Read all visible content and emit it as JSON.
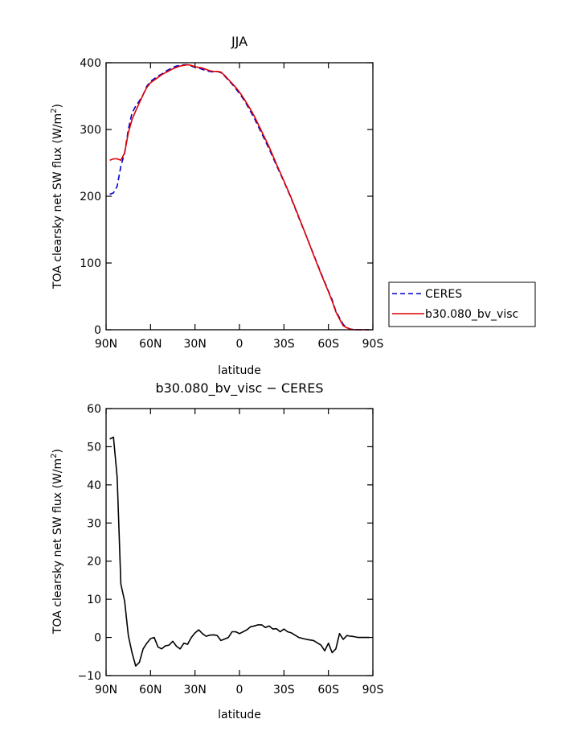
{
  "chart_data": [
    {
      "type": "line",
      "title": "JJA",
      "xlabel": "latitude",
      "ylabel": "TOA clearsky net SW flux (W/m²)",
      "ylabel_main": "TOA clearsky net SW flux (W/m",
      "ylabel_sup": "2",
      "ylabel_close": ")",
      "xlim": [
        -90,
        90
      ],
      "ylim": [
        0,
        400
      ],
      "x_ticks": [
        -90,
        -60,
        -30,
        0,
        30,
        60,
        90
      ],
      "x_tick_labels": [
        "90N",
        "60N",
        "30N",
        "0",
        "30S",
        "60S",
        "90S"
      ],
      "y_ticks": [
        0,
        100,
        200,
        300,
        400
      ],
      "y_tick_labels": [
        "0",
        "100",
        "200",
        "300",
        "400"
      ],
      "legend": {
        "placement": "right",
        "entries": [
          "CERES",
          "b30.080_bv_visc"
        ]
      },
      "series": [
        {
          "name": "CERES",
          "color": "#0000cc",
          "dash": "dashed",
          "x": [
            -87.5,
            -85,
            -82.5,
            -80,
            -77.5,
            -75,
            -72.5,
            -70,
            -67.5,
            -65,
            -62.5,
            -60,
            -57.5,
            -55,
            -52.5,
            -50,
            -47.5,
            -45,
            -42.5,
            -40,
            -37.5,
            -35,
            -32.5,
            -30,
            -27.5,
            -25,
            -22.5,
            -20,
            -17.5,
            -15,
            -12.5,
            -10,
            -7.5,
            -5,
            -2.5,
            0,
            2.5,
            5,
            7.5,
            10,
            15,
            20,
            25,
            30,
            35,
            40,
            45,
            50,
            55,
            60,
            62.5,
            65,
            67.5,
            70,
            72.5,
            75,
            77.5,
            80,
            82.5,
            85,
            87.5
          ],
          "y": [
            203,
            205,
            215,
            245,
            265,
            300,
            325,
            335,
            343,
            352,
            365,
            372,
            376,
            380,
            383,
            387,
            390,
            393,
            395,
            396,
            397,
            397,
            395,
            393,
            392,
            390,
            388,
            387,
            386,
            387,
            385,
            380,
            374,
            368,
            361,
            354,
            346,
            337,
            327,
            317,
            294,
            271,
            246,
            222,
            196,
            168,
            141,
            113,
            85,
            58,
            45,
            28,
            18,
            8,
            3,
            1,
            0,
            0,
            0,
            0,
            0
          ]
        },
        {
          "name": "b30.080_bv_visc",
          "color": "#dd0000",
          "dash": "solid",
          "x": [
            -87.5,
            -85,
            -82.5,
            -80,
            -77.5,
            -75,
            -72.5,
            -70,
            -67.5,
            -65,
            -62.5,
            -60,
            -57.5,
            -55,
            -52.5,
            -50,
            -47.5,
            -45,
            -42.5,
            -40,
            -37.5,
            -35,
            -32.5,
            -30,
            -27.5,
            -25,
            -22.5,
            -20,
            -17.5,
            -15,
            -12.5,
            -10,
            -7.5,
            -5,
            -2.5,
            0,
            2.5,
            5,
            7.5,
            10,
            15,
            20,
            25,
            30,
            35,
            40,
            45,
            50,
            55,
            60,
            62.5,
            65,
            67.5,
            70,
            72.5,
            75,
            77.5,
            80,
            82.5,
            85,
            87.5
          ],
          "y": [
            254,
            256,
            256,
            254,
            265,
            295,
            315,
            328,
            340,
            352,
            363,
            370,
            374,
            378,
            382,
            385,
            388,
            391,
            393,
            395,
            396,
            397,
            396,
            394,
            393,
            392,
            390,
            388,
            387,
            387,
            386,
            381,
            375,
            369,
            363,
            356,
            348,
            339,
            330,
            320,
            297,
            274,
            248,
            223,
            197,
            169,
            141,
            112,
            84,
            57,
            43,
            27,
            16,
            6,
            3,
            1,
            0,
            0,
            0,
            0,
            0
          ]
        }
      ]
    },
    {
      "type": "line",
      "title": "b30.080_bv_visc − CERES",
      "xlabel": "latitude",
      "ylabel": "TOA clearsky net SW flux (W/m²)",
      "ylabel_main": "TOA clearsky net SW flux (W/m",
      "ylabel_sup": "2",
      "ylabel_close": ")",
      "xlim": [
        -90,
        90
      ],
      "ylim": [
        -10,
        60
      ],
      "x_ticks": [
        -90,
        -60,
        -30,
        0,
        30,
        60,
        90
      ],
      "x_tick_labels": [
        "90N",
        "60N",
        "30N",
        "0",
        "30S",
        "60S",
        "90S"
      ],
      "y_ticks": [
        -10,
        0,
        10,
        20,
        30,
        40,
        50,
        60
      ],
      "y_tick_labels": [
        "−10",
        "0",
        "10",
        "20",
        "30",
        "40",
        "50",
        "60"
      ],
      "series": [
        {
          "color": "#000000",
          "dash": "solid",
          "x": [
            -87.5,
            -85,
            -82.5,
            -80,
            -77.5,
            -75,
            -72.5,
            -70,
            -67.5,
            -65,
            -62.5,
            -60,
            -57.5,
            -55,
            -52.5,
            -50,
            -47.5,
            -45,
            -42.5,
            -40,
            -37.5,
            -35,
            -32.5,
            -30,
            -27.5,
            -25,
            -22.5,
            -20,
            -17.5,
            -15,
            -12.5,
            -10,
            -7.5,
            -5,
            -2.5,
            0,
            2.5,
            5,
            7.5,
            10,
            12.5,
            15,
            17.5,
            20,
            22.5,
            25,
            27.5,
            30,
            32.5,
            35,
            40,
            45,
            50,
            55,
            57.5,
            60,
            62.5,
            65,
            67.5,
            70,
            72.5,
            75,
            77.5,
            80,
            82.5,
            85,
            87.5
          ],
          "y": [
            52,
            52.5,
            42,
            14,
            9.5,
            0.5,
            -4,
            -7.5,
            -6.5,
            -3,
            -1.5,
            -0.3,
            0,
            -2.5,
            -3,
            -2.2,
            -2,
            -1,
            -2.3,
            -3,
            -1.5,
            -1.8,
            0,
            1.2,
            2,
            1,
            0.3,
            0.6,
            0.7,
            0.5,
            -0.8,
            -0.4,
            0,
            1.5,
            1.5,
            1,
            1.5,
            2,
            2.8,
            3,
            3.3,
            3.3,
            2.6,
            3,
            2.2,
            2.3,
            1.5,
            2.2,
            1.5,
            1.2,
            0,
            -0.5,
            -0.8,
            -2,
            -3.5,
            -1.5,
            -4,
            -3,
            1,
            -0.5,
            0.5,
            0.3,
            0.2,
            0,
            0,
            0,
            0
          ]
        }
      ]
    }
  ]
}
